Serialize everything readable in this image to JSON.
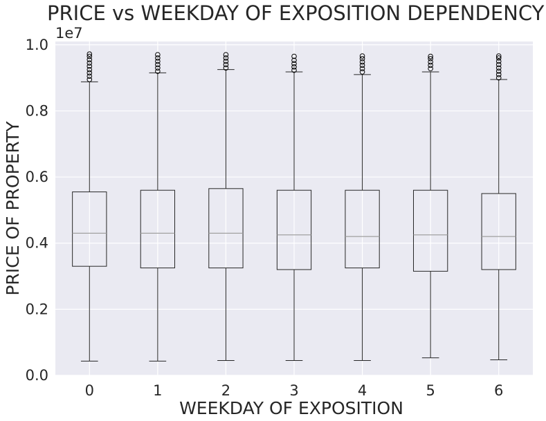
{
  "chart_data": {
    "type": "box",
    "title": "PRICE vs WEEKDAY OF EXPOSITION DEPENDENCY",
    "xlabel": "WEEKDAY OF EXPOSITION",
    "ylabel": "PRICE OF PROPERTY",
    "y_offset_text": "1e7",
    "y_scale_factor": 10000000,
    "ylim": [
      0,
      10100000
    ],
    "yticks": [
      0,
      2000000,
      4000000,
      6000000,
      8000000,
      10000000
    ],
    "ytick_labels": [
      "0.0",
      "0.2",
      "0.4",
      "0.6",
      "0.8",
      "1.0"
    ],
    "categories": [
      "0",
      "1",
      "2",
      "3",
      "4",
      "5",
      "6"
    ],
    "boxes": [
      {
        "category": "0",
        "whisker_low": 430000,
        "q1": 3300000,
        "median": 4300000,
        "q3": 5550000,
        "whisker_high": 8880000,
        "outliers": [
          8950000,
          9050000,
          9150000,
          9250000,
          9350000,
          9450000,
          9550000,
          9650000,
          9720000
        ]
      },
      {
        "category": "1",
        "whisker_low": 430000,
        "q1": 3250000,
        "median": 4300000,
        "q3": 5600000,
        "whisker_high": 9150000,
        "outliers": [
          9200000,
          9300000,
          9400000,
          9500000,
          9600000,
          9700000
        ]
      },
      {
        "category": "2",
        "whisker_low": 450000,
        "q1": 3250000,
        "median": 4300000,
        "q3": 5650000,
        "whisker_high": 9250000,
        "outliers": [
          9300000,
          9400000,
          9500000,
          9600000,
          9700000
        ]
      },
      {
        "category": "3",
        "whisker_low": 450000,
        "q1": 3200000,
        "median": 4250000,
        "q3": 5600000,
        "whisker_high": 9180000,
        "outliers": [
          9230000,
          9330000,
          9430000,
          9530000,
          9650000
        ]
      },
      {
        "category": "4",
        "whisker_low": 450000,
        "q1": 3250000,
        "median": 4200000,
        "q3": 5600000,
        "whisker_high": 9100000,
        "outliers": [
          9180000,
          9280000,
          9380000,
          9480000,
          9580000,
          9660000
        ]
      },
      {
        "category": "5",
        "whisker_low": 530000,
        "q1": 3150000,
        "median": 4250000,
        "q3": 5600000,
        "whisker_high": 9180000,
        "outliers": [
          9280000,
          9380000,
          9480000,
          9580000,
          9650000
        ]
      },
      {
        "category": "6",
        "whisker_low": 470000,
        "q1": 3200000,
        "median": 4200000,
        "q3": 5500000,
        "whisker_high": 8950000,
        "outliers": [
          9000000,
          9100000,
          9200000,
          9300000,
          9400000,
          9500000,
          9600000,
          9660000
        ]
      }
    ],
    "grid": true,
    "colors": {
      "plot_background": "#eaeaf2",
      "grid": "#ffffff",
      "box_edge": "#262626",
      "median": "#a0a0a0",
      "outlier_edge": "#000000"
    }
  }
}
